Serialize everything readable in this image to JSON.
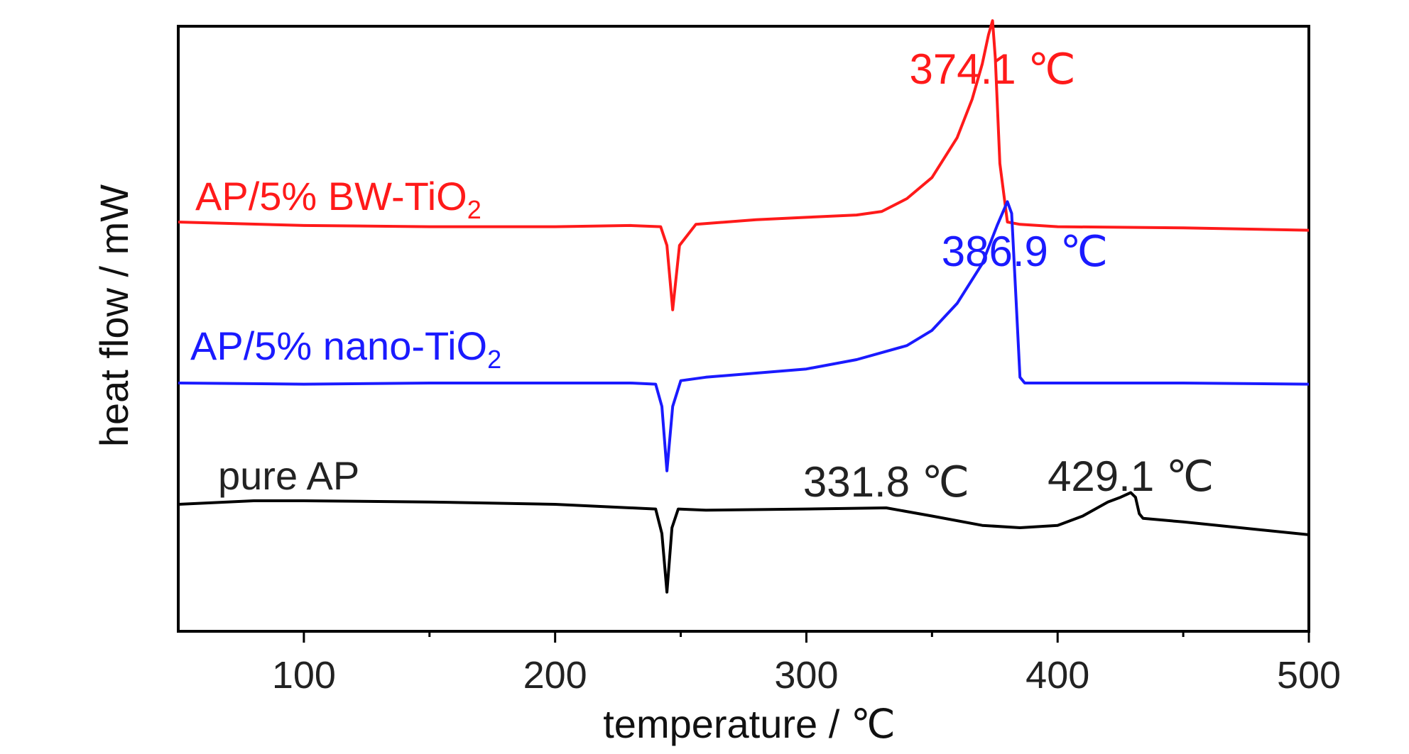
{
  "chart_data": {
    "type": "line",
    "xlabel": "temperature / ℃",
    "ylabel": "heat flow / mW",
    "xlim": [
      50,
      500
    ],
    "x_ticks": [
      100,
      200,
      300,
      400,
      500
    ],
    "x_minor_ticks": [
      150,
      250,
      350,
      450
    ],
    "grid": false,
    "series": [
      {
        "name": "AP/5% BW-TiO",
        "name_sub": "2",
        "color": "#ff1a1a",
        "label_pos": "left",
        "x": [
          50,
          100,
          150,
          200,
          230,
          242,
          244.5,
          246.8,
          249.5,
          256,
          280,
          300,
          320,
          330,
          340,
          350,
          360,
          366,
          370,
          372.5,
          374.1,
          375.2,
          377,
          380,
          385,
          400,
          450,
          500
        ],
        "y": [
          0.0,
          -0.03,
          -0.04,
          -0.04,
          -0.03,
          -0.04,
          -0.2,
          -0.75,
          -0.2,
          -0.02,
          0.02,
          0.04,
          0.06,
          0.09,
          0.2,
          0.38,
          0.72,
          1.05,
          1.35,
          1.6,
          1.72,
          1.4,
          0.5,
          0.0,
          -0.02,
          -0.04,
          -0.05,
          -0.07
        ]
      },
      {
        "name": "AP/5% nano-TiO",
        "name_sub": "2",
        "color": "#1a1aff",
        "label_pos": "left",
        "x": [
          50,
          100,
          150,
          200,
          230,
          240,
          242.5,
          244.5,
          246.8,
          250,
          260,
          300,
          320,
          340,
          350,
          360,
          370,
          376,
          380,
          381.7,
          383.5,
          385,
          386.9,
          390,
          450,
          500
        ],
        "y": [
          0.0,
          -0.01,
          0.0,
          0.0,
          0.0,
          -0.01,
          -0.2,
          -0.75,
          -0.2,
          0.02,
          0.05,
          0.12,
          0.2,
          0.32,
          0.45,
          0.68,
          1.02,
          1.35,
          1.55,
          1.45,
          0.7,
          0.05,
          0.0,
          0.0,
          0.0,
          -0.01
        ]
      },
      {
        "name": "pure AP",
        "name_sub": "",
        "color": "#000000",
        "label_pos": "left",
        "x": [
          50,
          80,
          100,
          150,
          200,
          230,
          240,
          242.5,
          244.5,
          246.5,
          249,
          260,
          300,
          331.8,
          350,
          370,
          385,
          400,
          410,
          420,
          425,
          429.1,
          431,
          432.5,
          434,
          450,
          500
        ],
        "y": [
          0.0,
          0.03,
          0.03,
          0.02,
          0.0,
          -0.03,
          -0.04,
          -0.25,
          -0.75,
          -0.2,
          -0.04,
          -0.05,
          -0.04,
          -0.03,
          -0.1,
          -0.18,
          -0.2,
          -0.18,
          -0.1,
          0.02,
          0.06,
          0.1,
          0.06,
          -0.08,
          -0.12,
          -0.15,
          -0.26
        ]
      }
    ],
    "annotations": [
      {
        "text": "374.1 ℃",
        "x": 374.1,
        "color": "#ff1a1a",
        "series": 0
      },
      {
        "text": "386.9 ℃",
        "x": 386.9,
        "color": "#1a1aff",
        "series": 1
      },
      {
        "text": "331.8 ℃",
        "x": 331.8,
        "color": "#222222",
        "series": 2
      },
      {
        "text": "429.1 ℃",
        "x": 429.1,
        "color": "#222222",
        "series": 2
      }
    ]
  }
}
